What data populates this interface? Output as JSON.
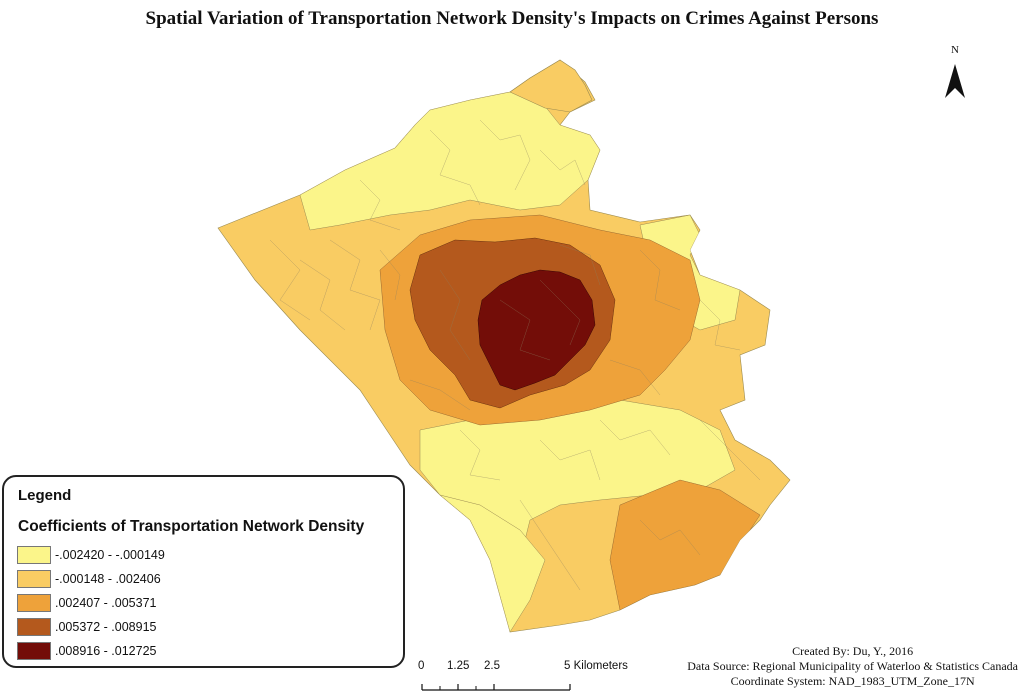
{
  "title": "Spatial Variation of Transportation Network Density's Impacts on Crimes Against Persons",
  "north_arrow": {
    "label": "N"
  },
  "legend": {
    "heading": "Legend",
    "subtitle": "Coefficients of Transportation Network Density",
    "classes": [
      {
        "label": "-.002420 - -.000149",
        "color": "#fbf58a"
      },
      {
        "label": "-.000148 - .002406",
        "color": "#f9cc63"
      },
      {
        "label": ".002407 - .005371",
        "color": "#eea23a"
      },
      {
        "label": ".005372 - .008915",
        "color": "#b4591d"
      },
      {
        "label": ".008916 - .012725",
        "color": "#730d08"
      }
    ]
  },
  "scale_bar": {
    "labels": [
      "0",
      "1.25",
      "2.5",
      "5 Kilometers"
    ]
  },
  "credits": {
    "created_by": "Created By: Du, Y., 2016",
    "data_source": "Data Source: Regional Municipality of Waterloo & Statistics Canada",
    "coordinate_system": "Coordinate System: NAD_1983_UTM_Zone_17N"
  }
}
